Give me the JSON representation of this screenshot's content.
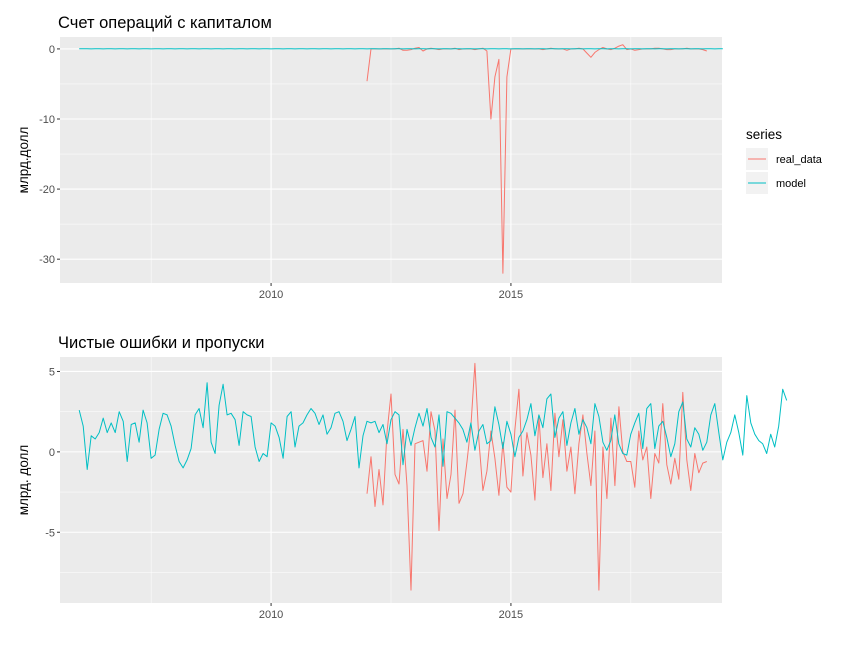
{
  "legend": {
    "title": "series",
    "items": [
      {
        "label": "real_data",
        "color": "#F8766D"
      },
      {
        "label": "model",
        "color": "#00BFC4"
      }
    ]
  },
  "chart_data": [
    {
      "type": "line",
      "title": "Счет операций с капиталом",
      "xlabel": "",
      "ylabel": "млрд.долл",
      "xlim": [
        2005.6,
        2019.4
      ],
      "ylim": [
        -33.4,
        1.7
      ],
      "x_ticks": [
        2010,
        2015
      ],
      "x_tick_labels": [
        "2010",
        "2015"
      ],
      "x_minor": [
        2007.5,
        2012.5,
        2017.5
      ],
      "y_ticks": [
        0,
        -10,
        -20,
        -30
      ],
      "y_tick_labels": [
        "0",
        "-10",
        "-20",
        "-30"
      ],
      "y_minor": [
        -5,
        -15,
        -25
      ],
      "grid": true,
      "legend_position": "right",
      "series": [
        {
          "name": "real_data",
          "color": "#F8766D",
          "start": 2012.0,
          "step": 0.08333,
          "values": [
            -4.6,
            0,
            0,
            0,
            0,
            0,
            0,
            0,
            0.1,
            -0.2,
            -0.2,
            -0.1,
            0.1,
            0.2,
            -0.3,
            0,
            0.1,
            0,
            -0.1,
            0,
            0,
            0,
            0.1,
            -0.1,
            0,
            0,
            0,
            -0.1,
            0,
            0.1,
            -0.3,
            -10,
            -4,
            -1.5,
            -32,
            -4,
            0,
            0,
            0,
            0,
            0,
            0,
            0,
            0,
            -0.1,
            0,
            0.1,
            0,
            0,
            0,
            -0.2,
            0,
            0,
            0.1,
            0,
            -0.6,
            -1.2,
            -0.5,
            -0.1,
            0.2,
            0,
            -0.1,
            0.1,
            0.4,
            0.6,
            -0.1,
            0,
            -0.2,
            -0.1,
            0,
            0,
            0,
            0.1,
            0.1,
            0,
            -0.1,
            -0.1,
            0,
            0,
            0,
            0.1,
            0,
            0,
            0,
            -0.1,
            -0.3
          ]
        },
        {
          "name": "model",
          "color": "#00BFC4",
          "start": 2006.0,
          "step": 0.08333,
          "values": [
            0.02,
            0.01,
            0.02,
            0,
            0.01,
            0.02,
            0,
            0.01,
            0.02,
            0,
            0.01,
            0.02,
            0,
            0.01,
            0.02,
            0,
            0.01,
            0.02,
            0,
            0.01,
            0.02,
            0,
            0.01,
            0.02,
            0,
            0.01,
            0.02,
            0,
            0.01,
            0.02,
            0,
            0.01,
            0.02,
            0,
            0.01,
            0.02,
            0,
            0.01,
            0.02,
            0,
            0.01,
            0.02,
            0,
            0.01,
            0.02,
            0,
            0.01,
            0.02,
            0,
            0.01,
            0.02,
            0,
            0.01,
            0.02,
            0,
            0.01,
            0.02,
            0,
            0.01,
            0.02,
            0,
            0.01,
            0.02,
            0,
            0.01,
            0.02,
            0,
            0.01,
            0.02,
            0,
            0.01,
            0.02,
            0,
            0.01,
            0.02,
            0,
            0.01,
            0.02,
            0,
            0.01,
            0.02,
            0,
            0.01,
            0.02,
            0,
            0.01,
            0.02,
            0,
            0.01,
            0.02,
            0,
            0.01,
            0.02,
            0,
            0.01,
            0.02,
            0,
            0.01,
            0.02,
            0,
            0.01,
            0.02,
            0,
            0.01,
            0.02,
            0,
            0.01,
            0.02,
            0,
            0.01,
            0.02,
            0,
            0.01,
            0.02,
            0,
            0.01,
            0.02,
            0,
            0.01,
            0.02,
            0,
            0.01,
            0.02,
            0,
            0.01,
            0.02,
            0,
            0.01,
            0.02,
            0,
            0.01,
            0.02,
            0,
            0.01,
            0.02,
            0,
            0.01,
            0.02,
            0,
            0.01,
            0.02,
            0,
            0.01,
            0.02,
            0,
            0.01,
            0.02,
            0,
            0.01,
            0.02,
            0,
            0.01,
            0.02,
            0,
            0.01,
            0.02,
            0,
            0.01,
            0.02,
            0,
            0.01,
            0.02
          ]
        }
      ]
    },
    {
      "type": "line",
      "title": "Чистые ошибки и пропуски",
      "xlabel": "",
      "ylabel": "млрд. долл",
      "xlim": [
        2005.6,
        2019.4
      ],
      "ylim": [
        -9.4,
        5.9
      ],
      "x_ticks": [
        2010,
        2015
      ],
      "x_tick_labels": [
        "2010",
        "2015"
      ],
      "x_minor": [
        2007.5,
        2012.5,
        2017.5
      ],
      "y_ticks": [
        5,
        0,
        -5
      ],
      "y_tick_labels": [
        "5",
        "0",
        "-5"
      ],
      "y_minor": [
        2.5,
        -2.5,
        -7.5
      ],
      "grid": true,
      "legend_position": "right",
      "series": [
        {
          "name": "real_data",
          "color": "#F8766D",
          "start": 2012.0,
          "step": 0.08333,
          "values": [
            -2.6,
            -0.3,
            -3.4,
            -1.1,
            -3.3,
            1.2,
            3.6,
            -1.4,
            -2,
            1.4,
            -2.1,
            -8.6,
            0.5,
            0.6,
            0.7,
            -1.2,
            2.5,
            1.3,
            -4.9,
            0.8,
            -2.9,
            -1.4,
            2.6,
            -3.2,
            -2.6,
            -0.6,
            1.6,
            5.5,
            0.7,
            -2.4,
            -1.2,
            1.3,
            -0.4,
            -2.7,
            0.6,
            -2.2,
            -2.5,
            1.4,
            3.9,
            -1.5,
            1.2,
            -0.2,
            -3,
            2.2,
            -1.6,
            0.5,
            -2.4,
            2.4,
            -0.3,
            2,
            -1.2,
            0.3,
            -2.6,
            0.5,
            2.3,
            -0.1,
            -2.1,
            1.3,
            -8.6,
            0.3,
            -2.9,
            2.1,
            -2.1,
            2.8,
            0,
            -0.6,
            -0.6,
            -2.2,
            1.3,
            -0.5,
            0.3,
            -2.9,
            -0.1,
            -0.7,
            3,
            -0.8,
            -2,
            -0.4,
            -1.7,
            3.7,
            -0.5,
            -2.4,
            -0.1,
            -1.3,
            -0.7,
            -0.6
          ]
        },
        {
          "name": "model",
          "color": "#00BFC4",
          "start": 2006.0,
          "step": 0.08333,
          "values": [
            2.6,
            1.6,
            -1.1,
            1.0,
            0.8,
            1.2,
            2.1,
            1.2,
            1.8,
            1.2,
            2.5,
            1.9,
            -0.6,
            1.7,
            1.8,
            0.6,
            2.6,
            1.8,
            -0.4,
            -0.2,
            1.4,
            2.4,
            2.3,
            1.6,
            0.4,
            -0.6,
            -1,
            -0.5,
            0.2,
            2.3,
            2.7,
            1.5,
            4.3,
            0.6,
            -0.1,
            2.9,
            4.2,
            2.3,
            2.4,
            2.0,
            0.4,
            2.5,
            2.3,
            2.2,
            0.3,
            -0.6,
            -0.1,
            -0.3,
            1.8,
            1.6,
            0.9,
            -0.4,
            2.2,
            2.5,
            0.3,
            1.6,
            1.8,
            2.3,
            2.7,
            2.4,
            1.7,
            2.3,
            1.1,
            1.5,
            2.4,
            2.5,
            1.9,
            0.7,
            1.4,
            2.2,
            -1,
            1.0,
            1.9,
            1.8,
            1.9,
            1.2,
            1.7,
            0.5,
            2.0,
            2.5,
            2.3,
            -0.8,
            1.4,
            0.4,
            1.5,
            2.4,
            1.6,
            2.7,
            0.9,
            0.3,
            2.3,
            -0.9,
            2.5,
            2.4,
            2.1,
            1.8,
            1.4,
            0.6,
            1.8,
            0.1,
            1.3,
            1.7,
            0.5,
            0.7,
            2.8,
            1.7,
            0.2,
            1.9,
            1.1,
            -0.3,
            0.9,
            1.3,
            2.0,
            3.0,
            1.0,
            2.3,
            1.5,
            3.3,
            3.6,
            0.9,
            2.1,
            2.5,
            0.4,
            1.8,
            2.7,
            1.1,
            2.0,
            1.5,
            0.5,
            3.0,
            2.2,
            0.6,
            0.1,
            0.7,
            2.3,
            0.5,
            -0.1,
            -0.2,
            1.1,
            1.8,
            2.4,
            0.2,
            2.7,
            3.0,
            0.2,
            1.6,
            1.9,
            0.9,
            -0.3,
            0.5,
            2.5,
            3.1,
            0.8,
            0.3,
            1.5,
            1.1,
            0.1,
            0.6,
            2.3,
            3.0,
            1.2,
            -0.5,
            0.6,
            1.2,
            2.3,
            1.2,
            -0.2,
            3.5,
            1.8,
            1.1,
            0.7,
            0.5,
            -0.1,
            1.1,
            0.3,
            1.6,
            3.9,
            3.2
          ]
        }
      ]
    }
  ]
}
